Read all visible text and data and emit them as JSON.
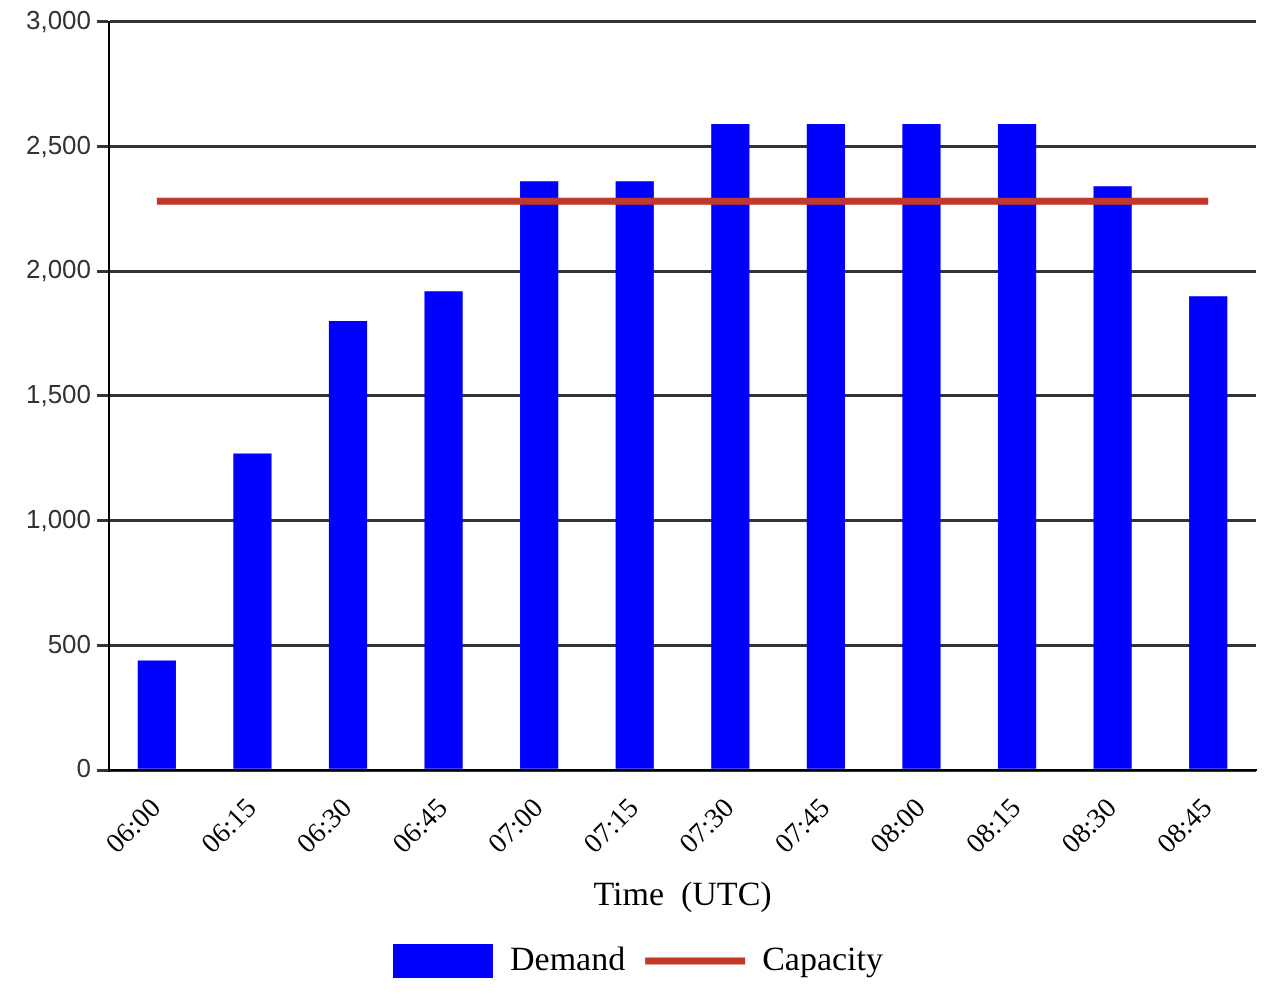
{
  "chart_data": {
    "type": "bar",
    "xlabel": "Time  (UTC)",
    "categories": [
      "06:00",
      "06:15",
      "06:30",
      "06:45",
      "07:00",
      "07:15",
      "07:30",
      "07:45",
      "08:00",
      "08:15",
      "08:30",
      "08:45"
    ],
    "series": [
      {
        "name": "Demand",
        "color": "#0000ff",
        "values": [
          440,
          1270,
          1800,
          1920,
          2360,
          2360,
          2590,
          2590,
          2590,
          2590,
          2340,
          1900
        ]
      },
      {
        "name": "Capacity",
        "type": "line",
        "color": "#c0392b",
        "values": [
          2280,
          2280,
          2280,
          2280,
          2280,
          2280,
          2280,
          2280,
          2280,
          2280,
          2280,
          2280
        ]
      }
    ],
    "ylim": [
      0,
      3000
    ],
    "yticks": [
      0,
      {
        "value": 500,
        "label": "500"
      },
      {
        "value": 1000,
        "label": "1,000"
      },
      {
        "value": 1500,
        "label": "1,500"
      },
      {
        "value": 2000,
        "label": "2,000"
      },
      {
        "value": 2500,
        "label": "2,500"
      },
      {
        "value": 3000,
        "label": "3,000"
      }
    ],
    "grid": "y",
    "legend": "bottom",
    "marker": "none"
  }
}
